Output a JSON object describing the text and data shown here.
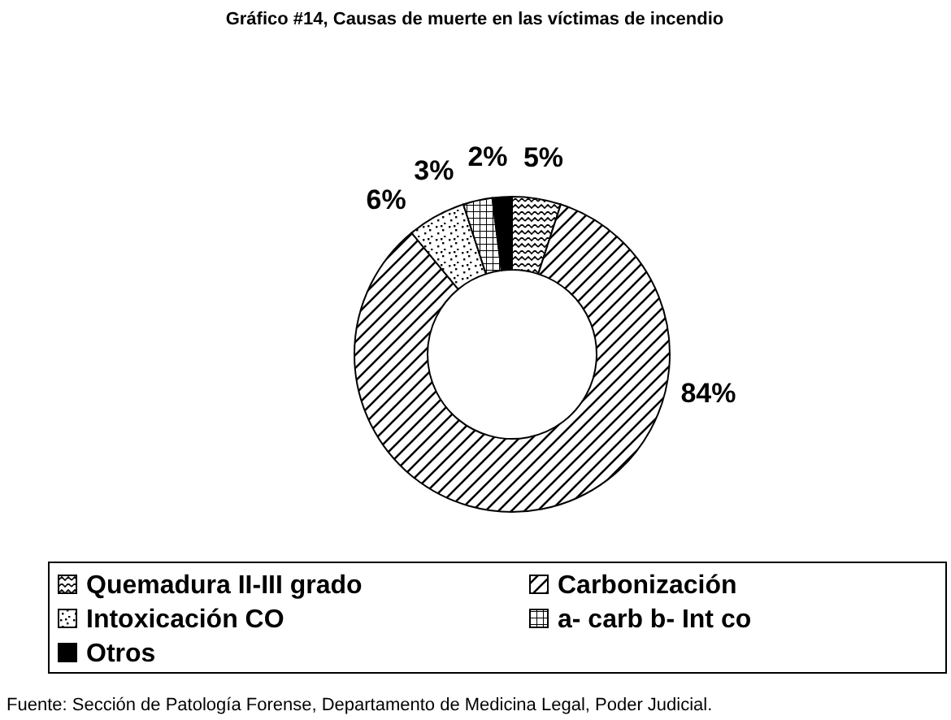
{
  "chart_data": {
    "type": "donut",
    "title": "Gráfico #14, Causas de muerte en las víctimas de incendio",
    "categories": [
      "Quemadura II-III grado",
      "Carbonización",
      "Intoxicación CO",
      "a- carb b- Int co",
      "Otros"
    ],
    "values": [
      5,
      84,
      6,
      3,
      2
    ],
    "colors": [
      "#000000",
      "#000000",
      "#000000",
      "#000000",
      "#000000"
    ],
    "value_labels": [
      "5%",
      "84%",
      "6%",
      "3%",
      "2%"
    ],
    "legend": "bottom",
    "annotations": [
      "Fuente: Sección de Patología Forense, Departamento de Medicina Legal, Poder Judicial."
    ]
  }
}
